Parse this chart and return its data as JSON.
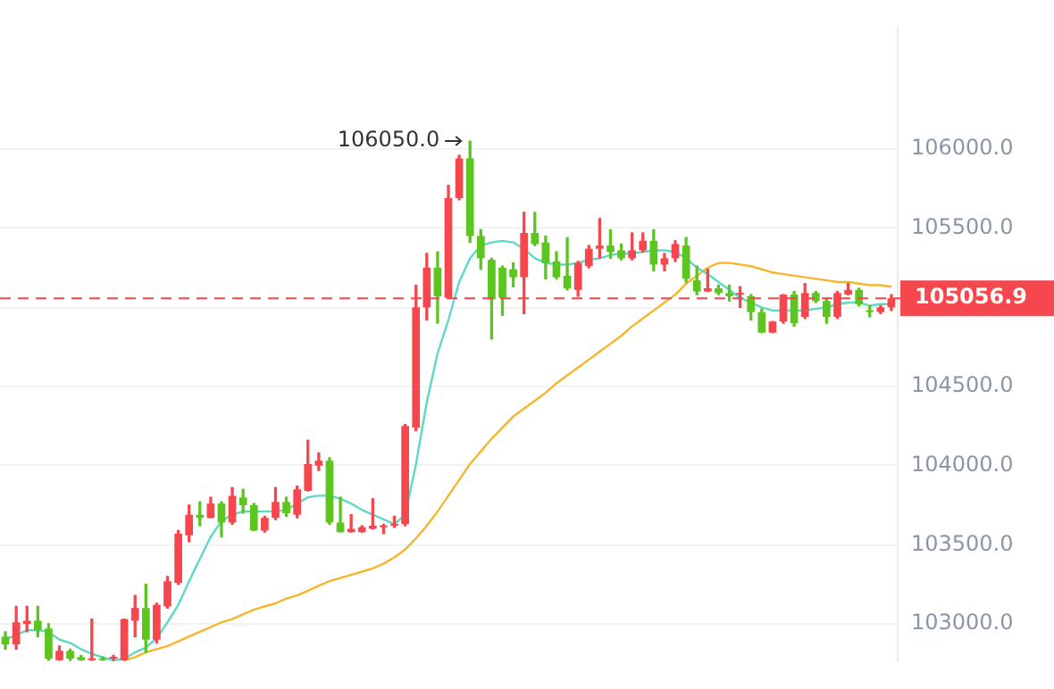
{
  "chart_data": {
    "type": "candlestick",
    "categories": [
      null,
      null,
      null,
      null,
      null,
      null,
      null,
      null,
      null,
      null,
      null,
      null,
      null,
      null,
      null,
      null,
      null,
      null,
      null,
      null,
      null,
      null,
      null,
      null,
      null,
      null,
      null,
      null,
      null,
      null,
      null,
      null,
      null,
      null,
      null,
      null,
      null,
      null,
      null,
      null,
      null,
      null,
      null,
      null,
      null,
      null,
      null,
      null,
      null,
      null,
      null,
      null,
      null,
      null,
      null,
      null,
      null,
      null,
      null,
      null,
      null,
      null,
      null,
      null,
      null,
      null,
      null,
      null,
      null,
      null,
      null,
      null,
      null,
      null,
      null,
      null,
      null,
      null,
      null,
      null,
      null,
      null,
      null
    ],
    "ohlc": [
      [
        102920,
        102950,
        102840,
        102870
      ],
      [
        102870,
        103110,
        102840,
        103010
      ],
      [
        103000,
        103110,
        102950,
        103020
      ],
      [
        103020,
        103110,
        102920,
        102960
      ],
      [
        102970,
        103000,
        102770,
        102780
      ],
      [
        102770,
        102860,
        102770,
        102830
      ],
      [
        102830,
        102840,
        102770,
        102780
      ],
      [
        102790,
        102800,
        102770,
        102770
      ],
      [
        102770,
        103030,
        102770,
        102780
      ],
      [
        102780,
        102790,
        102770,
        102770
      ],
      [
        102780,
        102800,
        102770,
        102790
      ],
      [
        102770,
        103030,
        102770,
        103030
      ],
      [
        103020,
        103180,
        102920,
        103100
      ],
      [
        103100,
        103250,
        102820,
        102900
      ],
      [
        102900,
        103130,
        102880,
        103120
      ],
      [
        103110,
        103300,
        103100,
        103270
      ],
      [
        103260,
        103590,
        103250,
        103570
      ],
      [
        103560,
        103750,
        103520,
        103690
      ],
      [
        103690,
        103770,
        103620,
        103670
      ],
      [
        103670,
        103800,
        103670,
        103760
      ],
      [
        103760,
        103770,
        103550,
        103640
      ],
      [
        103640,
        103860,
        103630,
        103810
      ],
      [
        103800,
        103850,
        103700,
        103750
      ],
      [
        103750,
        103760,
        103590,
        103590
      ],
      [
        103590,
        103680,
        103580,
        103670
      ],
      [
        103670,
        103860,
        103660,
        103770
      ],
      [
        103770,
        103800,
        103680,
        103700
      ],
      [
        103690,
        103870,
        103670,
        103850
      ],
      [
        103840,
        104160,
        103840,
        104010
      ],
      [
        104000,
        104080,
        103970,
        104030
      ],
      [
        104030,
        104050,
        103630,
        103640
      ],
      [
        103640,
        103800,
        103580,
        103580
      ],
      [
        103580,
        103690,
        103580,
        103600
      ],
      [
        103580,
        103620,
        103580,
        103610
      ],
      [
        103600,
        103790,
        103600,
        103620
      ],
      [
        103610,
        103630,
        103570,
        103620
      ],
      [
        103620,
        103680,
        103610,
        103630
      ],
      [
        103630,
        104260,
        103620,
        104250
      ],
      [
        104240,
        105140,
        104220,
        105000
      ],
      [
        105000,
        105340,
        104920,
        105250
      ],
      [
        105250,
        105350,
        104900,
        105070
      ],
      [
        105060,
        105770,
        105060,
        105690
      ],
      [
        105690,
        105960,
        105680,
        105940
      ],
      [
        105940,
        106050,
        105410,
        105450
      ],
      [
        105450,
        105490,
        105240,
        105310
      ],
      [
        105300,
        105310,
        104800,
        105050
      ],
      [
        105250,
        105260,
        104950,
        105060
      ],
      [
        105240,
        105280,
        105130,
        105190
      ],
      [
        105190,
        105600,
        104960,
        105470
      ],
      [
        105470,
        105600,
        105390,
        105400
      ],
      [
        105410,
        105450,
        105180,
        105280
      ],
      [
        105290,
        105350,
        105180,
        105190
      ],
      [
        105200,
        105440,
        105110,
        105120
      ],
      [
        105110,
        105290,
        105070,
        105280
      ],
      [
        105260,
        105390,
        105250,
        105370
      ],
      [
        105370,
        105560,
        105310,
        105390
      ],
      [
        105390,
        105490,
        105310,
        105350
      ],
      [
        105360,
        105400,
        105300,
        105310
      ],
      [
        105310,
        105470,
        105300,
        105360
      ],
      [
        105360,
        105470,
        105350,
        105420
      ],
      [
        105420,
        105490,
        105230,
        105270
      ],
      [
        105270,
        105340,
        105230,
        105310
      ],
      [
        105310,
        105420,
        105290,
        105400
      ],
      [
        105390,
        105440,
        105160,
        105180
      ],
      [
        105170,
        105260,
        105080,
        105100
      ],
      [
        105100,
        105240,
        105100,
        105120
      ],
      [
        105120,
        105140,
        105080,
        105090
      ],
      [
        105090,
        105140,
        105040,
        105070
      ],
      [
        105080,
        105130,
        105000,
        105090
      ],
      [
        105070,
        105080,
        104920,
        104970
      ],
      [
        104970,
        104990,
        104840,
        104840
      ],
      [
        104840,
        104910,
        104840,
        104910
      ],
      [
        104910,
        105080,
        104900,
        105080
      ],
      [
        105080,
        105100,
        104880,
        104900
      ],
      [
        104940,
        105150,
        104930,
        105090
      ],
      [
        105090,
        105100,
        105030,
        105040
      ],
      [
        105040,
        105060,
        104900,
        104940
      ],
      [
        104940,
        105100,
        104930,
        105090
      ],
      [
        105080,
        105150,
        105080,
        105110
      ],
      [
        105110,
        105120,
        105010,
        105020
      ],
      [
        104980,
        105010,
        104940,
        104970
      ],
      [
        104970,
        105010,
        104960,
        105000
      ],
      [
        105000,
        105080,
        104980,
        105056.9
      ]
    ],
    "colors": [
      "#5cc51f",
      "#f5474d",
      "#f5474d",
      "#5cc51f",
      "#5cc51f",
      "#f5474d",
      "#5cc51f",
      "#5cc51f",
      "#f5474d",
      "#5cc51f",
      "#f5474d",
      "#f5474d",
      "#f5474d",
      "#5cc51f",
      "#f5474d",
      "#f5474d",
      "#f5474d",
      "#f5474d",
      "#5cc51f",
      "#f5474d",
      "#5cc51f",
      "#f5474d",
      "#5cc51f",
      "#5cc51f",
      "#f5474d",
      "#f5474d",
      "#5cc51f",
      "#f5474d",
      "#f5474d",
      "#f5474d",
      "#5cc51f",
      "#5cc51f",
      "#f5474d",
      "#f5474d",
      "#f5474d",
      "#f5474d",
      "#f5474d",
      "#f5474d",
      "#f5474d",
      "#f5474d",
      "#5cc51f",
      "#f5474d",
      "#f5474d",
      "#5cc51f",
      "#5cc51f",
      "#5cc51f",
      "#5cc51f",
      "#5cc51f",
      "#f5474d",
      "#5cc51f",
      "#5cc51f",
      "#5cc51f",
      "#5cc51f",
      "#f5474d",
      "#f5474d",
      "#f5474d",
      "#5cc51f",
      "#5cc51f",
      "#f5474d",
      "#f5474d",
      "#5cc51f",
      "#f5474d",
      "#f5474d",
      "#5cc51f",
      "#5cc51f",
      "#f5474d",
      "#5cc51f",
      "#5cc51f",
      "#f5474d",
      "#5cc51f",
      "#5cc51f",
      "#f5474d",
      "#f5474d",
      "#5cc51f",
      "#f5474d",
      "#5cc51f",
      "#5cc51f",
      "#f5474d",
      "#f5474d",
      "#5cc51f",
      "#5cc51f",
      "#f5474d",
      "#f5474d"
    ],
    "series": [
      {
        "type": "line",
        "color": "#5dd9c6",
        "values": [
          102900,
          102930,
          102960,
          102960,
          102950,
          102900,
          102880,
          102840,
          102810,
          102790,
          102770,
          102780,
          102820,
          102850,
          102910,
          103010,
          103120,
          103270,
          103410,
          103550,
          103650,
          103690,
          103710,
          103710,
          103710,
          103710,
          103720,
          103760,
          103800,
          103810,
          103810,
          103790,
          103760,
          103720,
          103690,
          103660,
          103630,
          103690,
          104010,
          104400,
          104710,
          104920,
          105160,
          105310,
          105390,
          105410,
          105420,
          105410,
          105370,
          105310,
          105280,
          105270,
          105270,
          105280,
          105300,
          105310,
          105330,
          105340,
          105340,
          105350,
          105360,
          105360,
          105350,
          105310,
          105250,
          105210,
          105160,
          105110,
          105060,
          105030,
          105000,
          104980,
          104980,
          104980,
          104980,
          104990,
          105000,
          105020,
          105030,
          105030,
          105010,
          105020,
          105020
        ]
      },
      {
        "type": "line",
        "color": "#f7b52c",
        "values": [
          null,
          null,
          null,
          null,
          null,
          null,
          null,
          null,
          null,
          null,
          null,
          102770,
          102790,
          102820,
          102840,
          102860,
          102890,
          102920,
          102950,
          102980,
          103010,
          103030,
          103060,
          103090,
          103110,
          103130,
          103160,
          103180,
          103210,
          103240,
          103270,
          103290,
          103310,
          103330,
          103350,
          103380,
          103420,
          103470,
          103540,
          103620,
          103710,
          103810,
          103910,
          104010,
          104090,
          104170,
          104240,
          104310,
          104360,
          104410,
          104460,
          104520,
          104570,
          104620,
          104670,
          104720,
          104770,
          104820,
          104880,
          104930,
          104980,
          105030,
          105080,
          105150,
          105200,
          105250,
          105280,
          105280,
          105270,
          105260,
          105240,
          105220,
          105210,
          105200,
          105190,
          105180,
          105170,
          105160,
          105160,
          105150,
          105140,
          105140,
          105130
        ]
      }
    ],
    "ylim": [
      102760,
      106770
    ],
    "yticks": [
      {
        "value": 103000,
        "label": "103000.0"
      },
      {
        "value": 103500,
        "label": "103500.0"
      },
      {
        "value": 104000,
        "label": "104000.0"
      },
      {
        "value": 104500,
        "label": "104500.0"
      },
      {
        "value": 105000,
        "label": null
      },
      {
        "value": 105500,
        "label": "105500.0"
      },
      {
        "value": 106000,
        "label": "106000.0"
      }
    ],
    "grid": "y",
    "tick_labels": "y",
    "ref_lines": [
      {
        "axis": "y",
        "value": 105056.9,
        "label": "105056.9",
        "color": "#f5474d",
        "line_style": "dashed"
      }
    ],
    "annotations": [
      "106050.0"
    ]
  }
}
